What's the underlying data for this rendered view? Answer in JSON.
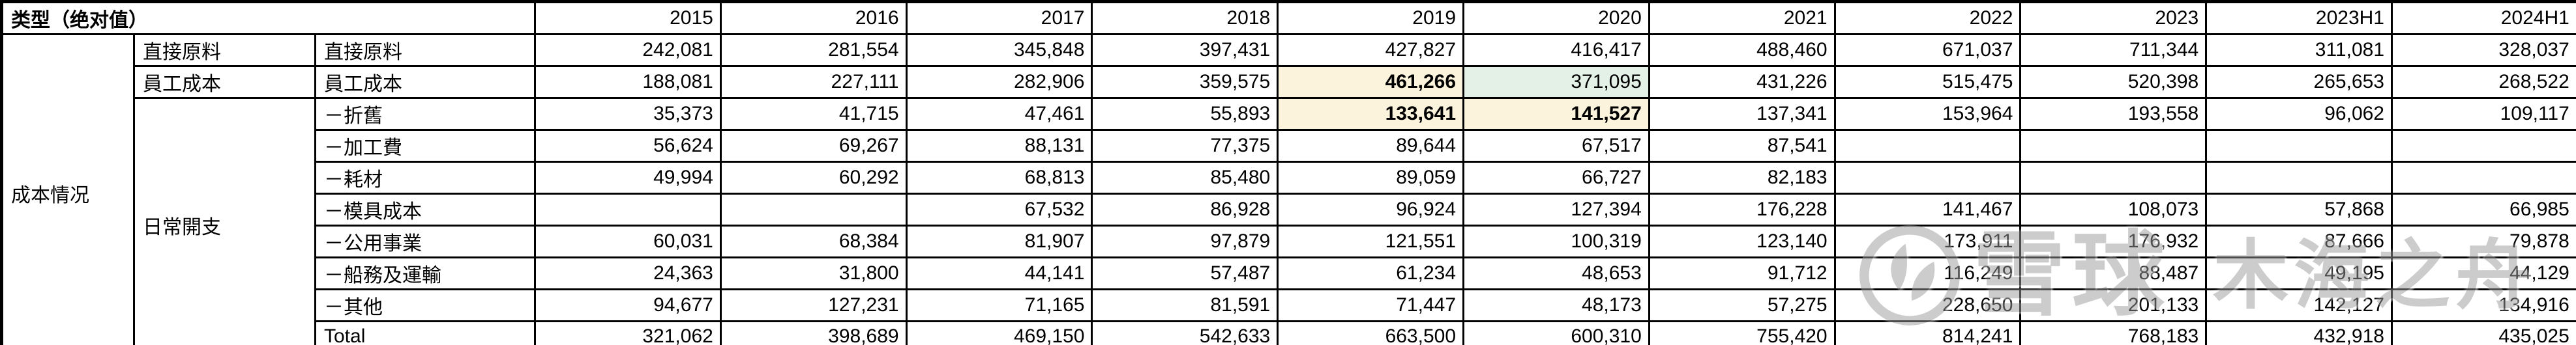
{
  "table": {
    "corner_header": "类型（绝对值）",
    "group_label": "成本情况",
    "years": [
      "2015",
      "2016",
      "2017",
      "2018",
      "2019",
      "2020",
      "2021",
      "2022",
      "2023",
      "2023H1",
      "2024H1"
    ],
    "rows": [
      {
        "category": {
          "text": "直接原料",
          "rowspan": 1
        },
        "label": "直接原料",
        "values": [
          "242,081",
          "281,554",
          "345,848",
          "397,431",
          "427,827",
          "416,417",
          "488,460",
          "671,037",
          "711,344",
          "311,081",
          "328,037"
        ]
      },
      {
        "category": {
          "text": "員工成本",
          "rowspan": 1
        },
        "label": "員工成本",
        "values": [
          "188,081",
          "227,111",
          "282,906",
          "359,575",
          "461,266",
          "371,095",
          "431,226",
          "515,475",
          "520,398",
          "265,653",
          "268,522"
        ],
        "highlights": {
          "4": {
            "bg": "highlight_cream",
            "bold": true
          },
          "5": {
            "bg": "highlight_green",
            "bold": false
          }
        }
      },
      {
        "category": {
          "text": "日常開支",
          "rowspan": 8
        },
        "label": "－折舊",
        "values": [
          "35,373",
          "41,715",
          "47,461",
          "55,893",
          "133,641",
          "141,527",
          "137,341",
          "153,964",
          "193,558",
          "96,062",
          "109,117"
        ],
        "highlights": {
          "4": {
            "bg": "highlight_cream",
            "bold": true
          },
          "5": {
            "bg": "highlight_cream",
            "bold": true
          }
        }
      },
      {
        "label": "－加工費",
        "values": [
          "56,624",
          "69,267",
          "88,131",
          "77,375",
          "89,644",
          "67,517",
          "87,541",
          "",
          "",
          "",
          ""
        ]
      },
      {
        "label": "－耗材",
        "values": [
          "49,994",
          "60,292",
          "68,813",
          "85,480",
          "89,059",
          "66,727",
          "82,183",
          "",
          "",
          "",
          ""
        ]
      },
      {
        "label": "－模具成本",
        "values": [
          "",
          "",
          "67,532",
          "86,928",
          "96,924",
          "127,394",
          "176,228",
          "141,467",
          "108,073",
          "57,868",
          "66,985"
        ]
      },
      {
        "label": "－公用事業",
        "values": [
          "60,031",
          "68,384",
          "81,907",
          "97,879",
          "121,551",
          "100,319",
          "123,140",
          "173,911",
          "176,932",
          "87,666",
          "79,878"
        ]
      },
      {
        "label": "－船務及運輸",
        "values": [
          "24,363",
          "31,800",
          "44,141",
          "57,487",
          "61,234",
          "48,653",
          "91,712",
          "116,249",
          "88,487",
          "49,195",
          "44,129"
        ]
      },
      {
        "label": "－其他",
        "values": [
          "94,677",
          "127,231",
          "71,165",
          "81,591",
          "71,447",
          "48,173",
          "57,275",
          "228,650",
          "201,133",
          "142,127",
          "134,916"
        ]
      },
      {
        "label": "Total",
        "values": [
          "321,062",
          "398,689",
          "469,150",
          "542,633",
          "663,500",
          "600,310",
          "755,420",
          "814,241",
          "768,183",
          "432,918",
          "435,025"
        ]
      }
    ]
  },
  "chart_data": {
    "type": "table",
    "title": "类型（绝对值） 成本情况",
    "columns": [
      "2015",
      "2016",
      "2017",
      "2018",
      "2019",
      "2020",
      "2021",
      "2022",
      "2023",
      "2023H1",
      "2024H1"
    ],
    "rows": [
      {
        "group": "成本情况",
        "category": "直接原料",
        "item": "直接原料",
        "values": [
          242081,
          281554,
          345848,
          397431,
          427827,
          416417,
          488460,
          671037,
          711344,
          311081,
          328037
        ]
      },
      {
        "group": "成本情况",
        "category": "員工成本",
        "item": "員工成本",
        "values": [
          188081,
          227111,
          282906,
          359575,
          461266,
          371095,
          431226,
          515475,
          520398,
          265653,
          268522
        ]
      },
      {
        "group": "成本情况",
        "category": "日常開支",
        "item": "折舊",
        "values": [
          35373,
          41715,
          47461,
          55893,
          133641,
          141527,
          137341,
          153964,
          193558,
          96062,
          109117
        ]
      },
      {
        "group": "成本情况",
        "category": "日常開支",
        "item": "加工費",
        "values": [
          56624,
          69267,
          88131,
          77375,
          89644,
          67517,
          87541,
          null,
          null,
          null,
          null
        ]
      },
      {
        "group": "成本情况",
        "category": "日常開支",
        "item": "耗材",
        "values": [
          49994,
          60292,
          68813,
          85480,
          89059,
          66727,
          82183,
          null,
          null,
          null,
          null
        ]
      },
      {
        "group": "成本情况",
        "category": "日常開支",
        "item": "模具成本",
        "values": [
          null,
          null,
          67532,
          86928,
          96924,
          127394,
          176228,
          141467,
          108073,
          57868,
          66985
        ]
      },
      {
        "group": "成本情况",
        "category": "日常開支",
        "item": "公用事業",
        "values": [
          60031,
          68384,
          81907,
          97879,
          121551,
          100319,
          123140,
          173911,
          176932,
          87666,
          79878
        ]
      },
      {
        "group": "成本情况",
        "category": "日常開支",
        "item": "船務及運輸",
        "values": [
          24363,
          31800,
          44141,
          57487,
          61234,
          48653,
          91712,
          116249,
          88487,
          49195,
          44129
        ]
      },
      {
        "group": "成本情况",
        "category": "日常開支",
        "item": "其他",
        "values": [
          94677,
          127231,
          71165,
          81591,
          71447,
          48173,
          57275,
          228650,
          201133,
          142127,
          134916
        ]
      },
      {
        "group": "成本情况",
        "category": "日常開支",
        "item": "Total",
        "values": [
          321062,
          398689,
          469150,
          542633,
          663500,
          600310,
          755420,
          814241,
          768183,
          432918,
          435025
        ]
      }
    ]
  },
  "watermark": {
    "brand": "雪球",
    "username": "木海之舟"
  },
  "colors": {
    "header_bg": "#e2efe2",
    "highlight_cream": "#fbf3db",
    "highlight_green": "#e4f1e7",
    "border": "#000000",
    "watermark_gray": "#9a9a9a"
  }
}
